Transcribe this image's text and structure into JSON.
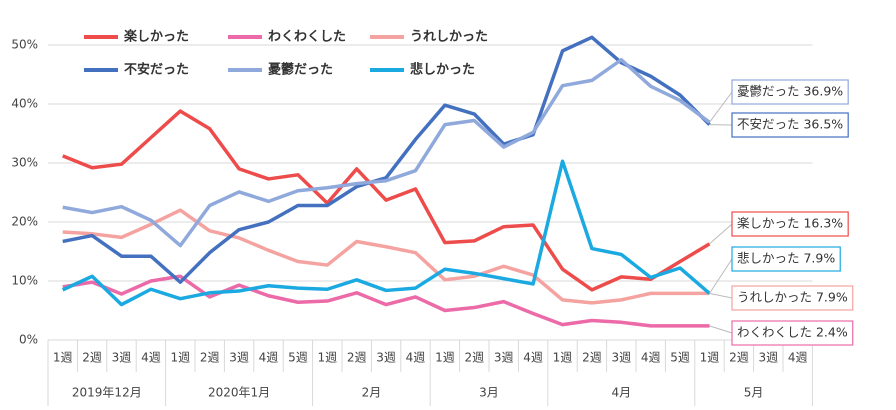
{
  "chart_data": {
    "type": "line",
    "categories": [
      "1週",
      "2週",
      "3週",
      "4週",
      "1週",
      "2週",
      "3週",
      "4週",
      "5週",
      "1週",
      "2週",
      "3週",
      "4週",
      "1週",
      "2週",
      "3週",
      "4週",
      "1週",
      "2週",
      "3週",
      "4週",
      "5週",
      "1週",
      "2週",
      "3週",
      "4週"
    ],
    "month_labels": [
      "2019年12月",
      "2020年1月",
      "2月",
      "3月",
      "4月",
      "5月"
    ],
    "ylim": [
      0,
      50
    ],
    "yticks": [
      {
        "value": 0,
        "label": "0%"
      },
      {
        "value": 10,
        "label": "10%"
      },
      {
        "value": 20,
        "label": "20%"
      },
      {
        "value": 30,
        "label": "30%"
      },
      {
        "value": 40,
        "label": "40%"
      },
      {
        "value": 50,
        "label": "50%"
      }
    ],
    "grid": true,
    "legend": "top-left",
    "series": [
      {
        "name": "楽しかった",
        "color": "#ee4b4b",
        "values": [
          31.2,
          29.2,
          29.8,
          34.3,
          38.8,
          35.8,
          29,
          27.3,
          28,
          23.2,
          29,
          23.7,
          25.6,
          16.5,
          16.8,
          19.2,
          19.5,
          12,
          8.5,
          10.7,
          10.3,
          13.3,
          16.3,
          null,
          null,
          null
        ],
        "value_labels": [
          null,
          null,
          null,
          null,
          null,
          null,
          null,
          null,
          null,
          null,
          null,
          null,
          null,
          null,
          null,
          null,
          null,
          null,
          null,
          null,
          null,
          null,
          "楽しかった 16.3%",
          null,
          null,
          null
        ]
      },
      {
        "name": "わくわくした",
        "color": "#ec6aa8",
        "values": [
          9,
          9.8,
          7.8,
          10,
          10.8,
          7.3,
          9.3,
          7.5,
          6.4,
          6.6,
          8,
          6,
          7.3,
          5,
          5.5,
          6.5,
          4.5,
          2.6,
          3.3,
          3,
          2.4,
          2.4,
          2.4,
          null,
          null,
          null
        ],
        "value_labels": [
          null,
          null,
          null,
          null,
          null,
          null,
          null,
          null,
          null,
          null,
          null,
          null,
          null,
          null,
          null,
          null,
          null,
          null,
          null,
          null,
          null,
          null,
          "わくわくした 2.4%",
          null,
          null,
          null
        ]
      },
      {
        "name": "うれしかった",
        "color": "#f5a3a0",
        "values": [
          18.3,
          18,
          17.4,
          19.6,
          22,
          18.5,
          17.3,
          15.2,
          13.3,
          12.7,
          16.7,
          15.8,
          14.8,
          10.2,
          10.8,
          12.5,
          11,
          6.8,
          6.3,
          6.8,
          7.9,
          7.9,
          7.9,
          null,
          null,
          null
        ],
        "value_labels": [
          null,
          null,
          null,
          null,
          null,
          null,
          null,
          null,
          null,
          null,
          null,
          null,
          null,
          null,
          null,
          null,
          null,
          null,
          null,
          null,
          null,
          null,
          "うれしかった 7.9%",
          null,
          null,
          null
        ]
      },
      {
        "name": "不安だった",
        "color": "#4470c0",
        "values": [
          16.7,
          17.7,
          14.2,
          14.2,
          9.8,
          14.8,
          18.7,
          20,
          22.8,
          22.8,
          26,
          27.5,
          34,
          39.8,
          38.3,
          33.2,
          34.8,
          49,
          51.3,
          47,
          44.7,
          41.5,
          36.5,
          null,
          null,
          null
        ],
        "value_labels": [
          null,
          null,
          null,
          null,
          null,
          null,
          null,
          null,
          null,
          null,
          null,
          null,
          null,
          null,
          null,
          null,
          null,
          null,
          null,
          null,
          null,
          null,
          "不安だった 36.5%",
          null,
          null,
          null
        ]
      },
      {
        "name": "憂鬱だった",
        "color": "#90a9dc",
        "values": [
          22.5,
          21.6,
          22.6,
          20.3,
          16,
          22.8,
          25.1,
          23.5,
          25.3,
          25.8,
          26.5,
          27,
          28.7,
          36.5,
          37.2,
          32.7,
          35.2,
          43.1,
          44,
          47.5,
          43,
          40.6,
          36.9,
          null,
          null,
          null
        ],
        "value_labels": [
          null,
          null,
          null,
          null,
          null,
          null,
          null,
          null,
          null,
          null,
          null,
          null,
          null,
          null,
          null,
          null,
          null,
          null,
          null,
          null,
          null,
          null,
          "憂鬱だった 36.9%",
          null,
          null,
          null
        ]
      },
      {
        "name": "悲しかった",
        "color": "#1ba9e1",
        "values": [
          8.5,
          10.8,
          6,
          8.6,
          7,
          8,
          8.3,
          9.2,
          8.8,
          8.6,
          10.2,
          8.4,
          8.8,
          12,
          11.3,
          10.4,
          9.5,
          30.3,
          15.5,
          14.5,
          10.6,
          12.2,
          7.9,
          null,
          null,
          null
        ],
        "value_labels": [
          null,
          null,
          null,
          null,
          null,
          null,
          null,
          null,
          null,
          null,
          null,
          null,
          null,
          null,
          null,
          null,
          null,
          null,
          null,
          null,
          null,
          null,
          "悲しかった 7.9%",
          null,
          null,
          null
        ]
      }
    ]
  }
}
